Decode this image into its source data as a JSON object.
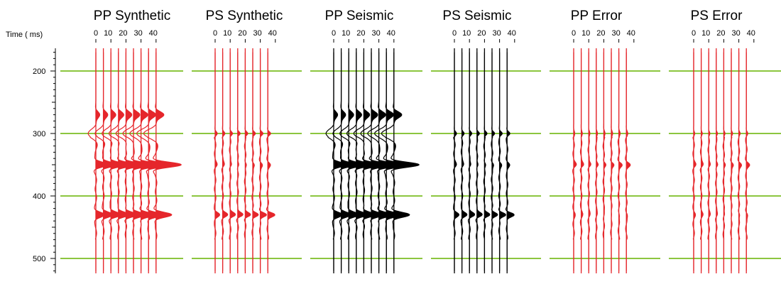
{
  "chart_data": {
    "type": "line",
    "y_axis": {
      "label": "Time ( ms)",
      "ticks": [
        200,
        300,
        400,
        500
      ],
      "ylim": [
        165,
        525
      ],
      "inverted": true
    },
    "horizon_lines_ms": [
      200,
      300,
      400,
      500
    ],
    "horizon_color": "#8cc63f",
    "panels": [
      {
        "id": "pp-synthetic",
        "title": "PP Synthetic",
        "color": "#e5262b",
        "x_ticks": [
          "0",
          "10",
          "20",
          "30",
          "40"
        ],
        "traces": 9,
        "variable_area": true,
        "events": [
          {
            "t": 300,
            "amp": -1.8,
            "w": 14,
            "grow": 0.6
          },
          {
            "t": 270,
            "amp": 0.9,
            "w": 10,
            "grow": 1.0
          },
          {
            "t": 350,
            "amp": 2.6,
            "w": 8,
            "grow": 1.2
          },
          {
            "t": 430,
            "amp": 1.9,
            "w": 8,
            "grow": 0.9
          }
        ]
      },
      {
        "id": "ps-synthetic",
        "title": "PS Synthetic",
        "color": "#e5262b",
        "x_ticks": [
          "0",
          "10",
          "20",
          "30",
          "40"
        ],
        "traces": 8,
        "variable_area": true,
        "events": [
          {
            "t": 300,
            "amp": 0.5,
            "w": 6,
            "grow": 0.3
          },
          {
            "t": 350,
            "amp": 0.35,
            "w": 7,
            "grow": 0.4
          },
          {
            "t": 430,
            "amp": 0.9,
            "w": 7,
            "grow": 0.9
          }
        ]
      },
      {
        "id": "pp-seismic",
        "title": "PP Seismic",
        "color": "#000000",
        "x_ticks": [
          "0",
          "10",
          "20",
          "30",
          "40"
        ],
        "traces": 9,
        "variable_area": true,
        "events": [
          {
            "t": 300,
            "amp": -1.8,
            "w": 14,
            "grow": 0.6
          },
          {
            "t": 270,
            "amp": 0.9,
            "w": 10,
            "grow": 1.0
          },
          {
            "t": 350,
            "amp": 2.6,
            "w": 8,
            "grow": 1.2
          },
          {
            "t": 430,
            "amp": 1.9,
            "w": 8,
            "grow": 0.9
          }
        ]
      },
      {
        "id": "ps-seismic",
        "title": "PS Seismic",
        "color": "#000000",
        "x_ticks": [
          "0",
          "10",
          "20",
          "30",
          "40"
        ],
        "traces": 8,
        "variable_area": true,
        "events": [
          {
            "t": 300,
            "amp": 0.5,
            "w": 6,
            "grow": 0.3
          },
          {
            "t": 350,
            "amp": 0.35,
            "w": 7,
            "grow": 0.4
          },
          {
            "t": 430,
            "amp": 0.9,
            "w": 7,
            "grow": 0.9
          }
        ]
      },
      {
        "id": "pp-error",
        "title": "PP Error",
        "color": "#e5262b",
        "x_ticks": [
          "0",
          "10",
          "20",
          "30",
          "40"
        ],
        "traces": 8,
        "variable_area": true,
        "events": [
          {
            "t": 300,
            "amp": 0.25,
            "w": 8,
            "grow": 0.3
          },
          {
            "t": 350,
            "amp": 0.5,
            "w": 7,
            "grow": 0.6
          },
          {
            "t": 430,
            "amp": 0.2,
            "w": 8,
            "grow": 0.3
          }
        ]
      },
      {
        "id": "ps-error",
        "title": "PS Error",
        "color": "#e5262b",
        "x_ticks": [
          "0",
          "10",
          "20",
          "30",
          "40"
        ],
        "traces": 8,
        "variable_area": true,
        "events": [
          {
            "t": 300,
            "amp": 0.25,
            "w": 6,
            "grow": 0.3
          },
          {
            "t": 350,
            "amp": 0.4,
            "w": 7,
            "grow": 0.6
          },
          {
            "t": 430,
            "amp": 0.25,
            "w": 7,
            "grow": 0.3
          }
        ]
      }
    ]
  }
}
